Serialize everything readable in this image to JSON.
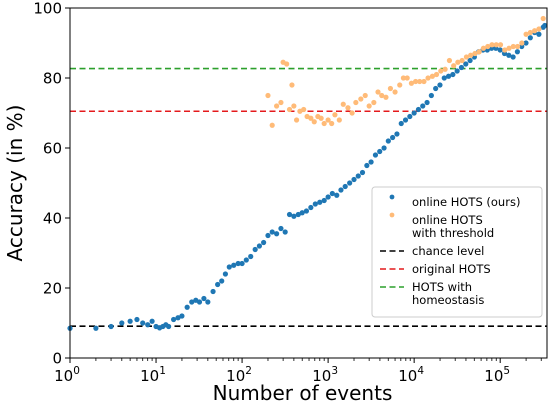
{
  "chart_data": {
    "type": "scatter",
    "xlabel": "Number of events",
    "ylabel": "Accuracy (in %)",
    "x_scale": "log",
    "xlim": [
      1,
      350000
    ],
    "ylim": [
      0,
      100
    ],
    "x_ticks": [
      {
        "value": 1,
        "base": "10",
        "exp": "0"
      },
      {
        "value": 10,
        "base": "10",
        "exp": "1"
      },
      {
        "value": 100,
        "base": "10",
        "exp": "2"
      },
      {
        "value": 1000,
        "base": "10",
        "exp": "3"
      },
      {
        "value": 10000,
        "base": "10",
        "exp": "4"
      },
      {
        "value": 100000,
        "base": "10",
        "exp": "5"
      }
    ],
    "y_ticks": [
      {
        "value": 0,
        "label": "0"
      },
      {
        "value": 20,
        "label": "20"
      },
      {
        "value": 40,
        "label": "40"
      },
      {
        "value": 60,
        "label": "60"
      },
      {
        "value": 80,
        "label": "80"
      },
      {
        "value": 100,
        "label": "100"
      }
    ],
    "grid": false,
    "legend_position": "lower-right",
    "series": [
      {
        "name": "online HOTS (ours)",
        "color": "#1f77b4",
        "marker": "dot",
        "points": [
          [
            1,
            8.5
          ],
          [
            2,
            8.5
          ],
          [
            3,
            9
          ],
          [
            4,
            10
          ],
          [
            5,
            10.5
          ],
          [
            6,
            11
          ],
          [
            7,
            10
          ],
          [
            8,
            9.5
          ],
          [
            9,
            10.5
          ],
          [
            10,
            9
          ],
          [
            11,
            8.6
          ],
          [
            12,
            9
          ],
          [
            13,
            9.5
          ],
          [
            14,
            9
          ],
          [
            16,
            11
          ],
          [
            18,
            11.5
          ],
          [
            20,
            12
          ],
          [
            23,
            14.5
          ],
          [
            26,
            16
          ],
          [
            29,
            16.5
          ],
          [
            32,
            16
          ],
          [
            36,
            17
          ],
          [
            40,
            16
          ],
          [
            46,
            19
          ],
          [
            52,
            21
          ],
          [
            58,
            22
          ],
          [
            64,
            24
          ],
          [
            71,
            26
          ],
          [
            80,
            26.5
          ],
          [
            90,
            27
          ],
          [
            100,
            27
          ],
          [
            112,
            28
          ],
          [
            126,
            29
          ],
          [
            142,
            31
          ],
          [
            159,
            32
          ],
          [
            178,
            33
          ],
          [
            200,
            35
          ],
          [
            224,
            36
          ],
          [
            252,
            35.5
          ],
          [
            283,
            37
          ],
          [
            317,
            36
          ],
          [
            356,
            41
          ],
          [
            400,
            40.5
          ],
          [
            450,
            41
          ],
          [
            500,
            41.5
          ],
          [
            560,
            42
          ],
          [
            630,
            43
          ],
          [
            710,
            44
          ],
          [
            800,
            44.5
          ],
          [
            900,
            45
          ],
          [
            1000,
            46
          ],
          [
            1120,
            47
          ],
          [
            1260,
            46.5
          ],
          [
            1410,
            48
          ],
          [
            1580,
            49
          ],
          [
            1780,
            50
          ],
          [
            2000,
            51
          ],
          [
            2240,
            52
          ],
          [
            2510,
            53
          ],
          [
            2820,
            55
          ],
          [
            3160,
            56
          ],
          [
            3550,
            58
          ],
          [
            3980,
            59
          ],
          [
            4470,
            60
          ],
          [
            5010,
            62
          ],
          [
            5620,
            63
          ],
          [
            6310,
            64
          ],
          [
            7080,
            67
          ],
          [
            7940,
            68
          ],
          [
            8910,
            69
          ],
          [
            10000,
            70
          ],
          [
            11220,
            71
          ],
          [
            12590,
            72
          ],
          [
            14130,
            73
          ],
          [
            15850,
            75
          ],
          [
            17780,
            77
          ],
          [
            19950,
            78
          ],
          [
            22390,
            80
          ],
          [
            25120,
            80.5
          ],
          [
            28180,
            81
          ],
          [
            31620,
            82
          ],
          [
            35480,
            83
          ],
          [
            39810,
            84
          ],
          [
            44670,
            85
          ],
          [
            50120,
            86
          ],
          [
            56230,
            87.5
          ],
          [
            63100,
            88
          ],
          [
            70790,
            88
          ],
          [
            79430,
            88.5
          ],
          [
            89130,
            88.5
          ],
          [
            100000,
            88
          ],
          [
            112200,
            87
          ],
          [
            125900,
            86.5
          ],
          [
            141300,
            86
          ],
          [
            158500,
            87.5
          ],
          [
            178000,
            89
          ],
          [
            199500,
            90
          ],
          [
            224000,
            91.5
          ],
          [
            251200,
            93
          ],
          [
            282000,
            92.5
          ],
          [
            316200,
            94.5
          ],
          [
            330000,
            95
          ]
        ]
      },
      {
        "name": "online HOTS\nwith threshold",
        "color": "#ffbb78",
        "marker": "dot",
        "points": [
          [
            200,
            75
          ],
          [
            224,
            66.5
          ],
          [
            252,
            72
          ],
          [
            283,
            73
          ],
          [
            300,
            84.5
          ],
          [
            330,
            84
          ],
          [
            356,
            71
          ],
          [
            380,
            78
          ],
          [
            400,
            72
          ],
          [
            430,
            68
          ],
          [
            470,
            70.5
          ],
          [
            520,
            71
          ],
          [
            570,
            69
          ],
          [
            630,
            68.5
          ],
          [
            690,
            67.5
          ],
          [
            760,
            69
          ],
          [
            830,
            68.5
          ],
          [
            900,
            67
          ],
          [
            1000,
            68
          ],
          [
            1100,
            67
          ],
          [
            1200,
            69.5
          ],
          [
            1350,
            68
          ],
          [
            1500,
            72.5
          ],
          [
            1700,
            71.5
          ],
          [
            1900,
            70
          ],
          [
            2100,
            73
          ],
          [
            2400,
            74
          ],
          [
            2700,
            75
          ],
          [
            3000,
            72
          ],
          [
            3400,
            73
          ],
          [
            3800,
            76
          ],
          [
            4200,
            75
          ],
          [
            4700,
            74.5
          ],
          [
            5300,
            77
          ],
          [
            6000,
            76
          ],
          [
            6800,
            78
          ],
          [
            7500,
            80
          ],
          [
            8300,
            80
          ],
          [
            9300,
            78.5
          ],
          [
            10400,
            79
          ],
          [
            11600,
            79
          ],
          [
            13000,
            79
          ],
          [
            14500,
            80
          ],
          [
            16300,
            80.5
          ],
          [
            18200,
            81
          ],
          [
            20400,
            82
          ],
          [
            22900,
            82.5
          ],
          [
            25700,
            85
          ],
          [
            28800,
            83.5
          ],
          [
            32200,
            84.5
          ],
          [
            36100,
            85
          ],
          [
            40500,
            86
          ],
          [
            45400,
            86.5
          ],
          [
            50900,
            87
          ],
          [
            57000,
            87.5
          ],
          [
            63900,
            88.5
          ],
          [
            71700,
            89
          ],
          [
            80300,
            89.5
          ],
          [
            90000,
            89.5
          ],
          [
            100900,
            89.5
          ],
          [
            113000,
            88
          ],
          [
            126700,
            88.5
          ],
          [
            142000,
            89
          ],
          [
            159200,
            89
          ],
          [
            178400,
            90
          ],
          [
            200000,
            92.5
          ],
          [
            224000,
            93
          ],
          [
            251200,
            93.5
          ],
          [
            282000,
            94
          ],
          [
            316200,
            97
          ]
        ]
      }
    ],
    "reference_lines": [
      {
        "name": "chance level",
        "y": 9.09,
        "color": "#000000",
        "style": "dashed"
      },
      {
        "name": "original HOTS",
        "y": 70.5,
        "color": "#e41a1c",
        "style": "dashed"
      },
      {
        "name": "HOTS with\nhomeostasis",
        "y": 82.7,
        "color": "#2ca02c",
        "style": "dashed"
      }
    ]
  }
}
